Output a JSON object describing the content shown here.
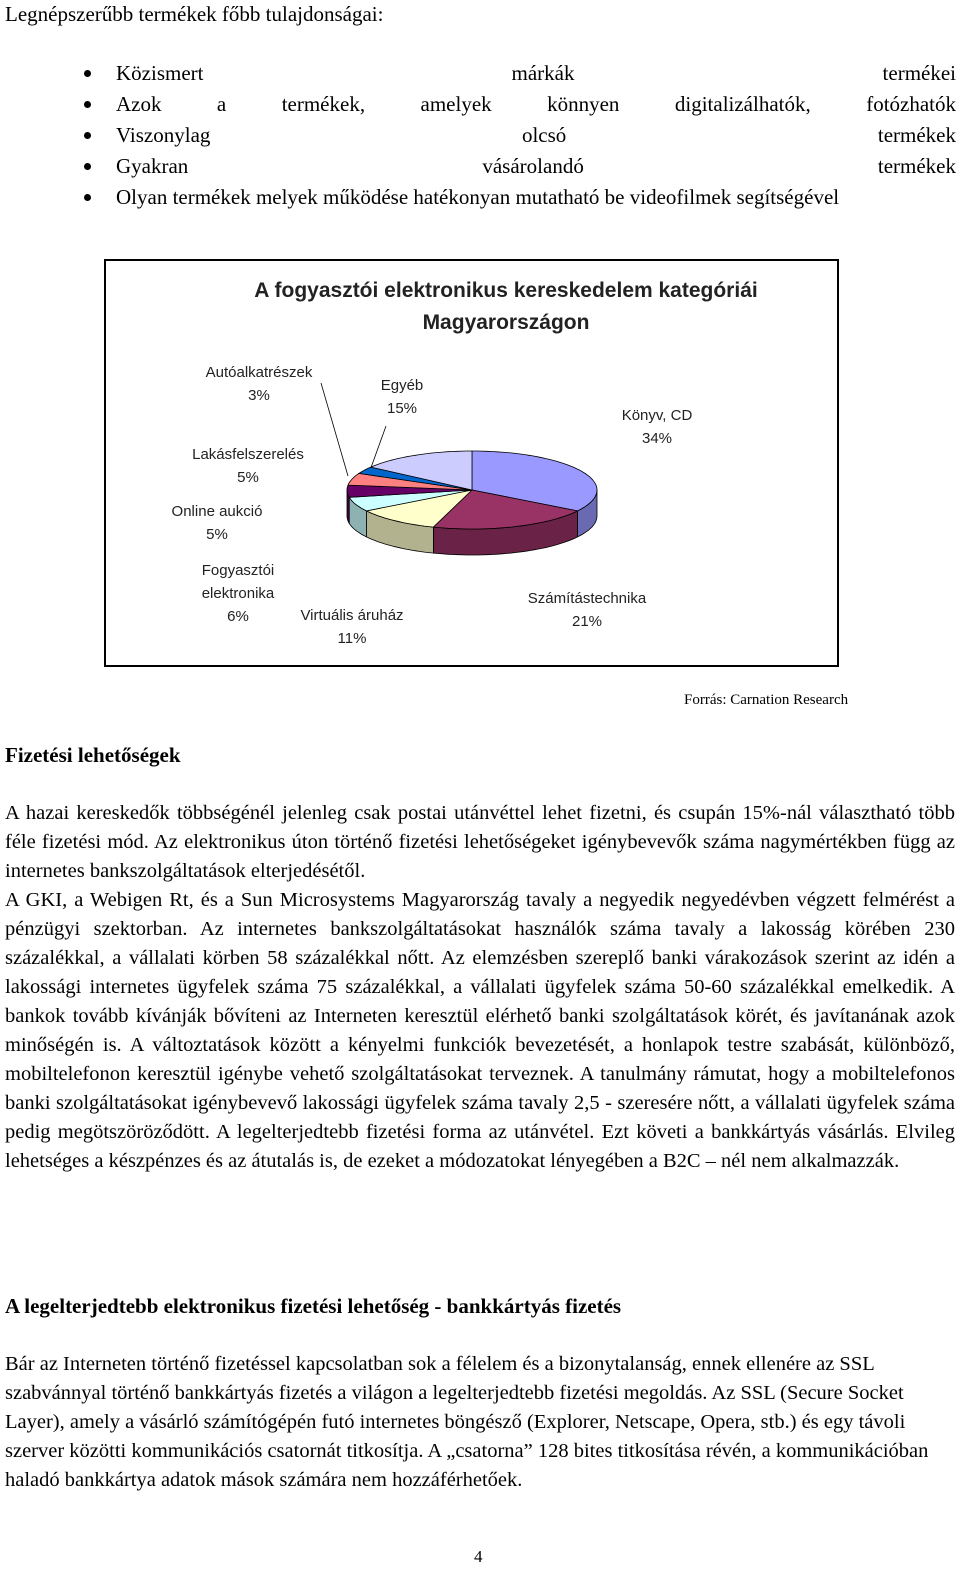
{
  "intro": "Legnépszerűbb termékek főbb tulajdonságai:",
  "bullets": [
    "Közismert márkák termékei",
    "Azok a termékek, amelyek könnyen digitalizálhatók, fotózhatók",
    "Viszonylag olcsó termékek",
    "Gyakran vásárolandó termékek",
    "Olyan termékek melyek működése hatékonyan mutatható be videofilmek segítségével"
  ],
  "chart_data": {
    "type": "pie",
    "title": "A fogyasztói elektronikus kereskedelem kategóriái Magyarországon",
    "categories": [
      "Könyv, CD",
      "Számítástechnika",
      "Virtuális áruház",
      "Fogyasztói elektronika",
      "Online aukció",
      "Lakásfelszerelés",
      "Autóalkatrészek",
      "Egyéb"
    ],
    "values": [
      34,
      21,
      11,
      6,
      5,
      5,
      3,
      15
    ],
    "value_labels": [
      "34%",
      "21%",
      "11%",
      "6%",
      "5%",
      "5%",
      "3%",
      "15%"
    ],
    "colors": [
      "#9999ff",
      "#993366",
      "#ffffcc",
      "#ccffff",
      "#660066",
      "#ff8080",
      "#0066cc",
      "#ccccff"
    ]
  },
  "source": "Forrás: Carnation Research",
  "heading1": "Fizetési lehetőségek",
  "paragraphs1": [
    "A hazai kereskedők többségénél jelenleg csak postai utánvéttel lehet fizetni, és csupán 15%-nál választható több féle fizetési mód. Az elektronikus úton történő fizetési lehetőségeket igénybevevők száma nagymértékben függ az internetes bankszolgáltatások elterjedésétől.",
    "A GKI, a Webigen Rt, és a Sun Microsystems Magyarország tavaly a negyedik negyedévben végzett felmérést a pénzügyi szektorban. Az internetes bankszolgáltatásokat használók száma tavaly a lakosság körében 230 százalékkal, a vállalati körben 58 százalékkal nőtt. Az elemzésben szereplő banki várakozások szerint az idén a lakossági internetes ügyfelek száma 75 százalékkal, a vállalati ügyfelek száma 50-60 százalékkal emelkedik. A bankok tovább kívánják bővíteni az Interneten keresztül elérhető banki szolgáltatások körét, és javítanának azok minőségén is. A változtatások között a kényelmi funkciók bevezetését, a honlapok testre szabását, különböző, mobiltelefonon keresztül igénybe vehető szolgáltatásokat terveznek. A tanulmány rámutat, hogy a mobiltelefonos banki szolgáltatásokat igénybevevő lakossági ügyfelek száma tavaly 2,5 - szeresére nőtt, a vállalati ügyfelek száma pedig megötszöröződött. A legelterjedtebb fizetési forma az utánvétel. Ezt követi a bankkártyás vásárlás. Elvileg lehetséges a készpénzes és az átutalás is, de ezeket a módozatokat lényegében a B2C – nél nem alkalmazzák."
  ],
  "heading2": "A legelterjedtebb elektronikus fizetési lehetőség - bankkártyás fizetés",
  "paragraph2": "Bár az Interneten történő fizetéssel kapcsolatban sok a félelem és a bizonytalanság, ennek ellenére az SSL szabvánnyal történő bankkártyás fizetés a világon a legelterjedtebb fizetési megoldás. Az SSL (Secure Socket Layer), amely a vásárló számítógépén futó internetes böngésző (Explorer, Netscape, Opera, stb.) és egy távoli szerver közötti kommunikációs csatornát titkosítja. A „csatorna” 128 bites titkosítása révén, a kommunikációban haladó bankkártya adatok mások számára nem hozzáférhetőek.",
  "page_number": "4"
}
